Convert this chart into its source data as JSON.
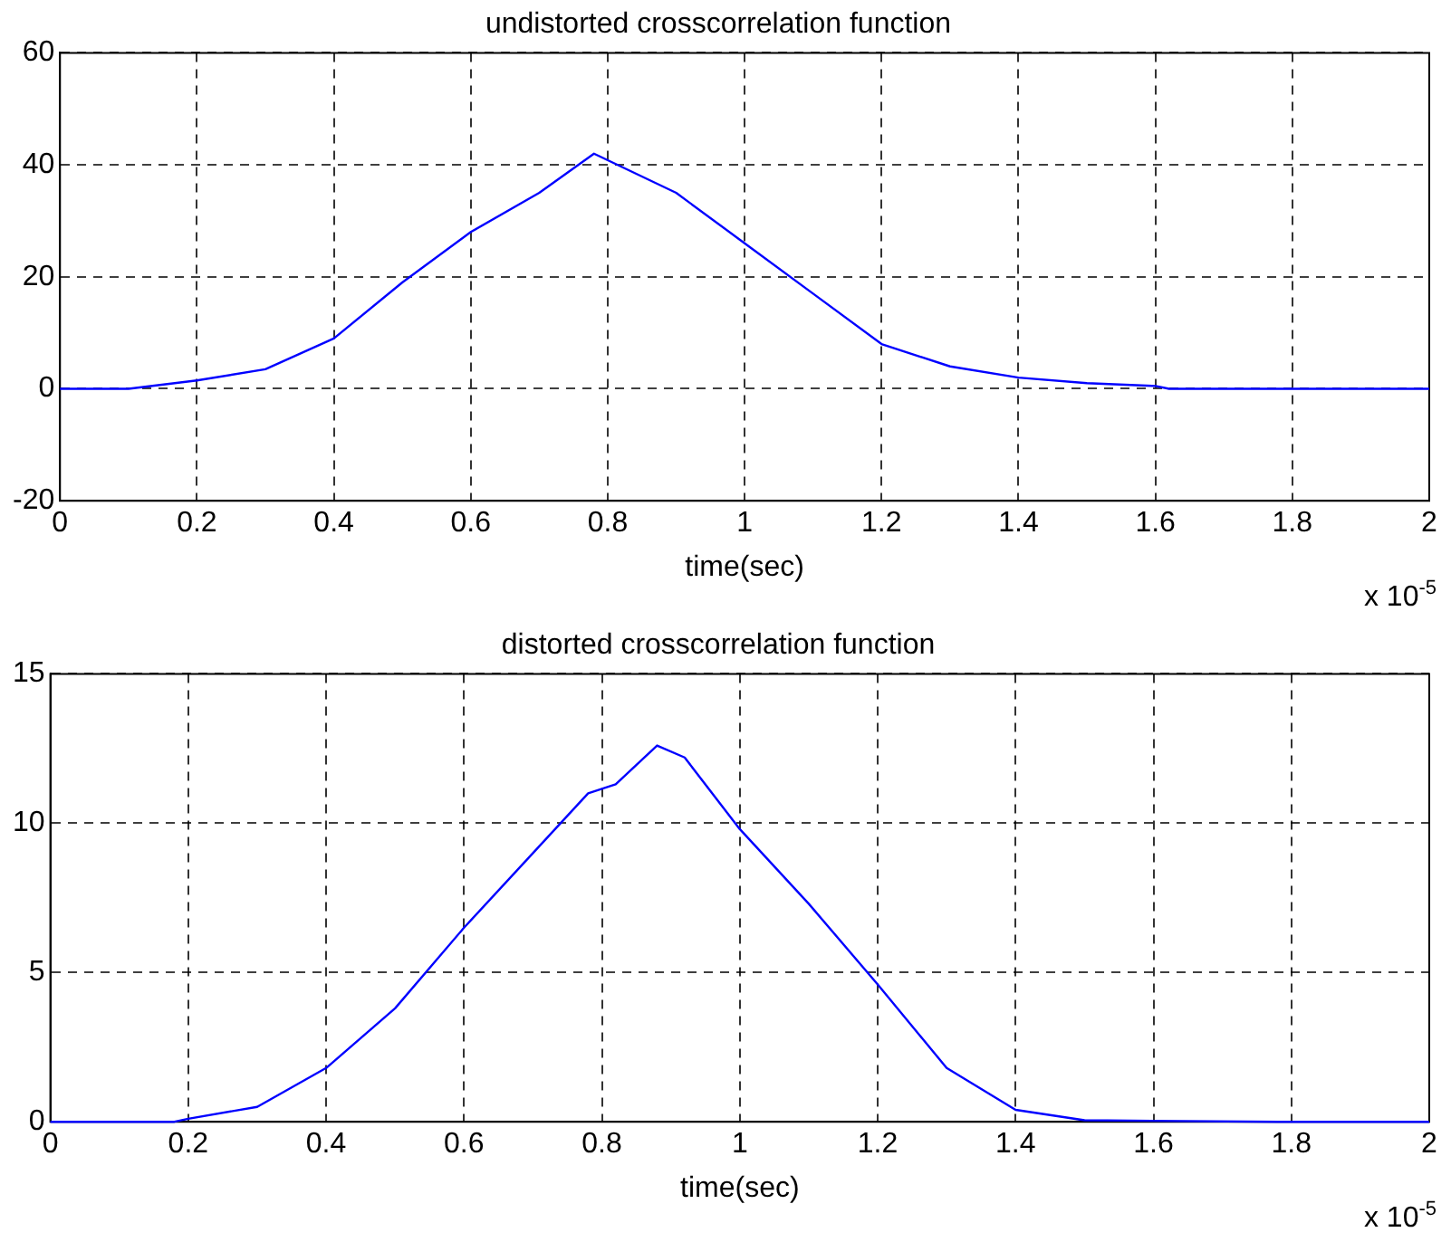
{
  "chart_data": [
    {
      "type": "line",
      "title": "undistorted crosscorrelation function",
      "xlabel": "time(sec)",
      "annotations": [
        "x 10$^{-5}$"
      ],
      "grid": true,
      "legend": false,
      "marker": "none",
      "line_style": "solid",
      "xlim": [
        0,
        2
      ],
      "xticks": [
        0,
        0.2,
        0.4,
        0.6,
        0.8,
        1,
        1.2,
        1.4,
        1.6,
        1.8,
        2
      ],
      "ylim": [
        -20,
        60
      ],
      "yticks": [
        -20,
        0,
        20,
        40,
        60
      ],
      "series": [
        {
          "color": "#0000ff",
          "x": [
            0,
            0.1,
            0.2,
            0.3,
            0.4,
            0.5,
            0.6,
            0.7,
            0.78,
            0.9,
            1.0,
            1.1,
            1.2,
            1.3,
            1.4,
            1.5,
            1.6,
            1.62,
            2
          ],
          "values": [
            0,
            0,
            1.5,
            3.5,
            9,
            19,
            28,
            35,
            42,
            35,
            26,
            17,
            8,
            4,
            2,
            1,
            0.5,
            0,
            0
          ]
        }
      ]
    },
    {
      "type": "line",
      "title": "distorted crosscorrelation function",
      "xlabel": "time(sec)",
      "annotations": [
        "x 10$^{-5}$"
      ],
      "grid": true,
      "legend": false,
      "marker": "none",
      "line_style": "solid",
      "xlim": [
        0,
        2
      ],
      "xticks": [
        0,
        0.2,
        0.4,
        0.6,
        0.8,
        1,
        1.2,
        1.4,
        1.6,
        1.8,
        2
      ],
      "ylim": [
        0,
        15
      ],
      "yticks": [
        0,
        5,
        10,
        15
      ],
      "series": [
        {
          "color": "#0000ff",
          "x": [
            0,
            0.18,
            0.2,
            0.3,
            0.4,
            0.5,
            0.6,
            0.7,
            0.78,
            0.82,
            0.88,
            0.92,
            1.0,
            1.1,
            1.2,
            1.3,
            1.4,
            1.5,
            1.78,
            2
          ],
          "values": [
            0,
            0,
            0.1,
            0.5,
            1.8,
            3.8,
            6.5,
            9,
            11,
            11.3,
            12.6,
            12.2,
            9.8,
            7.3,
            4.6,
            1.8,
            0.4,
            0.05,
            0,
            0
          ]
        }
      ]
    }
  ]
}
